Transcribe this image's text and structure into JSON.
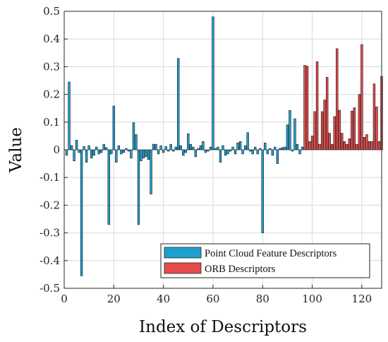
{
  "chart_data": {
    "type": "bar",
    "xlabel": "Index of Descriptors",
    "ylabel": "Value",
    "xlim": [
      0,
      128
    ],
    "ylim": [
      -0.5,
      0.5
    ],
    "grid": true,
    "legend_position": "bottom-right",
    "x_ticks": [
      "0",
      "20",
      "40",
      "60",
      "80",
      "100",
      "120"
    ],
    "y_ticks": [
      "-0.5",
      "-0.4",
      "-0.3",
      "-0.2",
      "-0.1",
      "0",
      "0.1",
      "0.2",
      "0.3",
      "0.4",
      "0.5"
    ],
    "series": [
      {
        "name": "Point Cloud Feature Descriptors",
        "color": "#1f9fd0",
        "x": [
          1,
          2,
          3,
          4,
          5,
          6,
          7,
          8,
          9,
          10,
          11,
          12,
          13,
          14,
          15,
          16,
          17,
          18,
          19,
          20,
          21,
          22,
          23,
          24,
          25,
          26,
          27,
          28,
          29,
          30,
          31,
          32,
          33,
          34,
          35,
          36,
          37,
          38,
          39,
          40,
          41,
          42,
          43,
          44,
          45,
          46,
          47,
          48,
          49,
          50,
          51,
          52,
          53,
          54,
          55,
          56,
          57,
          58,
          59,
          60,
          61,
          62,
          63,
          64,
          65,
          66,
          67,
          68,
          69,
          70,
          71,
          72,
          73,
          74,
          75,
          76,
          77,
          78,
          79,
          80,
          81,
          82,
          83,
          84,
          85,
          86,
          87,
          88,
          89,
          90,
          91,
          92,
          93,
          94,
          95,
          96
        ],
        "values": [
          -0.02,
          0.245,
          0.015,
          -0.04,
          0.035,
          -0.01,
          -0.455,
          0.012,
          -0.045,
          0.015,
          -0.03,
          -0.02,
          0.01,
          -0.015,
          -0.01,
          0.02,
          0.008,
          -0.27,
          -0.015,
          0.158,
          -0.045,
          0.015,
          -0.015,
          -0.01,
          0.005,
          -0.005,
          -0.03,
          0.098,
          0.055,
          -0.27,
          -0.04,
          -0.03,
          -0.025,
          -0.035,
          -0.16,
          0.02,
          0.02,
          -0.015,
          0.015,
          -0.01,
          0.012,
          -0.005,
          0.02,
          -0.005,
          0.01,
          0.33,
          0.015,
          -0.02,
          -0.01,
          0.058,
          0.02,
          0.01,
          -0.025,
          0.005,
          0.015,
          0.03,
          -0.01,
          -0.005,
          0.01,
          0.48,
          0.005,
          0.01,
          -0.045,
          0.015,
          -0.02,
          -0.015,
          -0.005,
          0.01,
          -0.015,
          0.025,
          0.03,
          -0.015,
          0.015,
          0.062,
          -0.005,
          -0.015,
          0.01,
          -0.015,
          0.005,
          -0.3,
          0.025,
          -0.015,
          0.005,
          -0.02,
          0.01,
          -0.05,
          0.005,
          0.008,
          0.01,
          0.09,
          0.142,
          -0.005,
          0.112,
          0.02,
          -0.015,
          0.01
        ]
      },
      {
        "name": "ORB Descriptors",
        "color": "#e64a4a",
        "x": [
          97,
          98,
          99,
          100,
          101,
          102,
          103,
          104,
          105,
          106,
          107,
          108,
          109,
          110,
          111,
          112,
          113,
          114,
          115,
          116,
          117,
          118,
          119,
          120,
          121,
          122,
          123,
          124,
          125,
          126,
          127,
          128
        ],
        "values": [
          0.305,
          0.302,
          0.03,
          0.05,
          0.138,
          0.318,
          0.02,
          0.138,
          0.18,
          0.262,
          0.06,
          0.02,
          0.12,
          0.365,
          0.143,
          0.06,
          0.03,
          0.02,
          0.04,
          0.14,
          0.152,
          0.02,
          0.2,
          0.38,
          0.045,
          0.055,
          0.03,
          0.03,
          0.238,
          0.155,
          0.03,
          0.265
        ]
      }
    ]
  }
}
